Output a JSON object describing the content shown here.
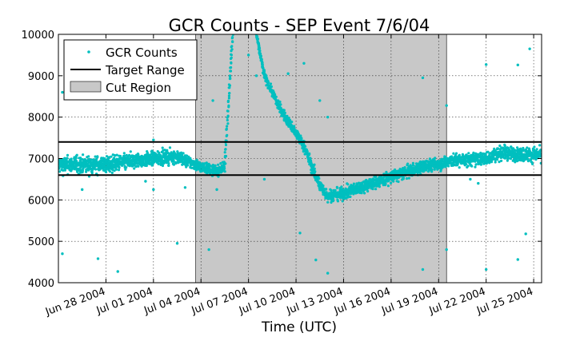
{
  "chart_data": {
    "type": "scatter",
    "title": "GCR Counts - SEP Event 7/6/04",
    "xlabel": "Time (UTC)",
    "ylabel": "",
    "xlim": [
      "2004-06-25",
      "2004-07-25T12:00"
    ],
    "ylim": [
      4000,
      10000
    ],
    "grid": true,
    "yticks": [
      4000,
      5000,
      6000,
      7000,
      8000,
      9000,
      10000
    ],
    "xticks": [
      {
        "date": "2004-06-28",
        "label": "Jun 28 2004"
      },
      {
        "date": "2004-07-01",
        "label": "Jul 01 2004"
      },
      {
        "date": "2004-07-04",
        "label": "Jul 04 2004"
      },
      {
        "date": "2004-07-07",
        "label": "Jul 07 2004"
      },
      {
        "date": "2004-07-10",
        "label": "Jul 10 2004"
      },
      {
        "date": "2004-07-13",
        "label": "Jul 13 2004"
      },
      {
        "date": "2004-07-16",
        "label": "Jul 16 2004"
      },
      {
        "date": "2004-07-19",
        "label": "Jul 19 2004"
      },
      {
        "date": "2004-07-22",
        "label": "Jul 22 2004"
      },
      {
        "date": "2004-07-25",
        "label": "Jul 25 2004"
      }
    ],
    "legend": {
      "placement": "top-left",
      "entries": [
        "GCR Counts",
        "Target Range",
        "Cut Region"
      ]
    },
    "series": [
      {
        "name": "GCR Counts",
        "marker": "dot",
        "color": "#00bfbf",
        "band_points": [
          {
            "x": "2004-06-25T00:00",
            "y": 6850,
            "spread": 350
          },
          {
            "x": "2004-06-28T00:00",
            "y": 6850,
            "spread": 330
          },
          {
            "x": "2004-07-01T00:00",
            "y": 7000,
            "spread": 280
          },
          {
            "x": "2004-07-02T12:00",
            "y": 7050,
            "spread": 280
          },
          {
            "x": "2004-07-03T00:00",
            "y": 6950,
            "spread": 250
          },
          {
            "x": "2004-07-04T00:00",
            "y": 6800,
            "spread": 220
          },
          {
            "x": "2004-07-05T00:00",
            "y": 6700,
            "spread": 200
          },
          {
            "x": "2004-07-05T12:00",
            "y": 6800,
            "spread": 200
          },
          {
            "x": "2004-07-05T18:00",
            "y": 8500,
            "spread": 80
          },
          {
            "x": "2004-07-06T00:00",
            "y": 10000,
            "spread": 40
          },
          {
            "x": "2004-07-06T12:00",
            "y": 12000,
            "spread": 40
          },
          {
            "x": "2004-07-07T06:00",
            "y": 12000,
            "spread": 40
          },
          {
            "x": "2004-07-07T12:00",
            "y": 10000,
            "spread": 80
          },
          {
            "x": "2004-07-08T00:00",
            "y": 9000,
            "spread": 150
          },
          {
            "x": "2004-07-09T00:00",
            "y": 8200,
            "spread": 200
          },
          {
            "x": "2004-07-10T00:00",
            "y": 7600,
            "spread": 220
          },
          {
            "x": "2004-07-10T12:00",
            "y": 7300,
            "spread": 220
          },
          {
            "x": "2004-07-11T00:00",
            "y": 6800,
            "spread": 240
          },
          {
            "x": "2004-07-11T12:00",
            "y": 6350,
            "spread": 250
          },
          {
            "x": "2004-07-12T00:00",
            "y": 6100,
            "spread": 250
          },
          {
            "x": "2004-07-13T00:00",
            "y": 6150,
            "spread": 250
          },
          {
            "x": "2004-07-14T00:00",
            "y": 6300,
            "spread": 250
          },
          {
            "x": "2004-07-16T00:00",
            "y": 6550,
            "spread": 250
          },
          {
            "x": "2004-07-18T00:00",
            "y": 6800,
            "spread": 250
          },
          {
            "x": "2004-07-20T00:00",
            "y": 6950,
            "spread": 260
          },
          {
            "x": "2004-07-22T00:00",
            "y": 7000,
            "spread": 260
          },
          {
            "x": "2004-07-23T00:00",
            "y": 7150,
            "spread": 280
          },
          {
            "x": "2004-07-24T00:00",
            "y": 7100,
            "spread": 280
          },
          {
            "x": "2004-07-25T12:00",
            "y": 7100,
            "spread": 280
          }
        ],
        "outliers": [
          {
            "x": "2004-06-25T06:00",
            "y": 8600
          },
          {
            "x": "2004-06-25T06:00",
            "y": 4700
          },
          {
            "x": "2004-06-26T12:00",
            "y": 6250
          },
          {
            "x": "2004-06-27T12:00",
            "y": 4580
          },
          {
            "x": "2004-06-28T18:00",
            "y": 4270
          },
          {
            "x": "2004-06-30T12:00",
            "y": 6450
          },
          {
            "x": "2004-07-01T00:00",
            "y": 7450
          },
          {
            "x": "2004-07-01T00:00",
            "y": 6250
          },
          {
            "x": "2004-07-02T12:00",
            "y": 4950
          },
          {
            "x": "2004-07-03T00:00",
            "y": 6300
          },
          {
            "x": "2004-07-04T12:00",
            "y": 4800
          },
          {
            "x": "2004-07-04T18:00",
            "y": 8400
          },
          {
            "x": "2004-07-05T00:00",
            "y": 6250
          },
          {
            "x": "2004-07-07T00:00",
            "y": 9500
          },
          {
            "x": "2004-07-07T12:00",
            "y": 9000
          },
          {
            "x": "2004-07-08T00:00",
            "y": 6500
          },
          {
            "x": "2004-07-09T12:00",
            "y": 9050
          },
          {
            "x": "2004-07-10T06:00",
            "y": 5200
          },
          {
            "x": "2004-07-10T12:00",
            "y": 9300
          },
          {
            "x": "2004-07-11T06:00",
            "y": 4550
          },
          {
            "x": "2004-07-11T12:00",
            "y": 8400
          },
          {
            "x": "2004-07-12T00:00",
            "y": 8000
          },
          {
            "x": "2004-07-12T00:00",
            "y": 4230
          },
          {
            "x": "2004-07-18T00:00",
            "y": 8950
          },
          {
            "x": "2004-07-18T00:00",
            "y": 4320
          },
          {
            "x": "2004-07-19T12:00",
            "y": 8280
          },
          {
            "x": "2004-07-19T12:00",
            "y": 4800
          },
          {
            "x": "2004-07-21T00:00",
            "y": 6500
          },
          {
            "x": "2004-07-21T12:00",
            "y": 6400
          },
          {
            "x": "2004-07-22T00:00",
            "y": 9270
          },
          {
            "x": "2004-07-22T00:00",
            "y": 4320
          },
          {
            "x": "2004-07-24T00:00",
            "y": 9260
          },
          {
            "x": "2004-07-24T00:00",
            "y": 4560
          },
          {
            "x": "2004-07-24T12:00",
            "y": 5180
          },
          {
            "x": "2004-07-24T18:00",
            "y": 9650
          }
        ]
      },
      {
        "name": "Target Range",
        "type": "hlines",
        "color": "#000000",
        "values": [
          6600,
          7400
        ]
      },
      {
        "name": "Cut Region",
        "type": "span",
        "color": "#c8c8c8",
        "x_start": "2004-07-03T16:00",
        "x_end": "2004-07-19T12:00"
      }
    ]
  }
}
